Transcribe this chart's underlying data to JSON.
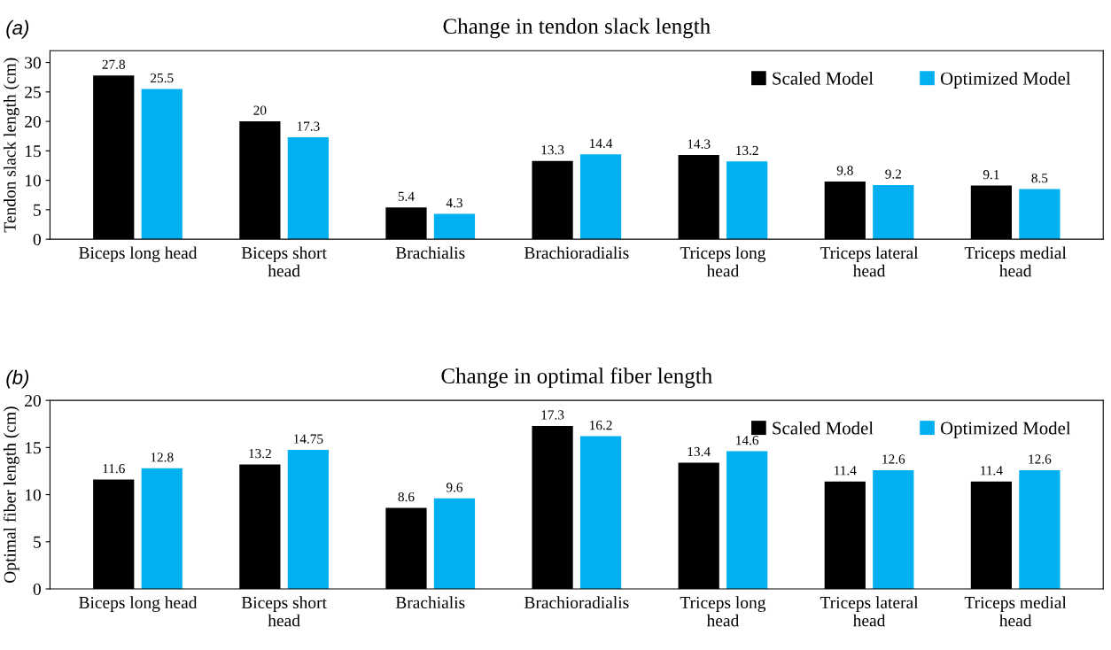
{
  "chart_data": [
    {
      "type": "bar",
      "title": "Change in tendon slack length",
      "ylabel": "Tendon slack length (cm)",
      "annotations": [
        "(a)"
      ],
      "categories": [
        "Biceps long head",
        "Biceps short\nhead",
        "Brachialis",
        "Brachioradialis",
        "Triceps long\nhead",
        "Triceps lateral\nhead",
        "Triceps medial\nhead"
      ],
      "series": [
        {
          "name": "Scaled Model",
          "color": "#000000",
          "values": [
            27.8,
            20,
            5.4,
            13.3,
            14.3,
            9.8,
            9.1
          ]
        },
        {
          "name": "Optimized Model",
          "color": "#00b0f0",
          "values": [
            25.5,
            17.3,
            4.3,
            14.4,
            13.2,
            9.2,
            8.5
          ]
        }
      ],
      "ylim": [
        0,
        32
      ],
      "yticks": [
        0,
        5,
        10,
        15,
        20,
        25,
        30
      ],
      "grid": false,
      "legend": "top right",
      "data_labels": true
    },
    {
      "type": "bar",
      "title": "Change in optimal fiber length",
      "ylabel": "Optimal fiber length (cm)",
      "annotations": [
        "(b)"
      ],
      "categories": [
        "Biceps long head",
        "Biceps short\nhead",
        "Brachialis",
        "Brachioradialis",
        "Triceps long\nhead",
        "Triceps lateral\nhead",
        "Triceps medial\nhead"
      ],
      "series": [
        {
          "name": "Scaled Model",
          "color": "#000000",
          "values": [
            11.6,
            13.2,
            8.6,
            17.3,
            13.4,
            11.4,
            11.4
          ]
        },
        {
          "name": "Optimized Model",
          "color": "#00b0f0",
          "values": [
            12.8,
            14.75,
            9.6,
            16.2,
            14.6,
            12.6,
            12.6
          ]
        }
      ],
      "ylim": [
        0,
        20
      ],
      "yticks": [
        0,
        5,
        10,
        15,
        20
      ],
      "grid": false,
      "legend": "top right",
      "data_labels": true
    }
  ]
}
